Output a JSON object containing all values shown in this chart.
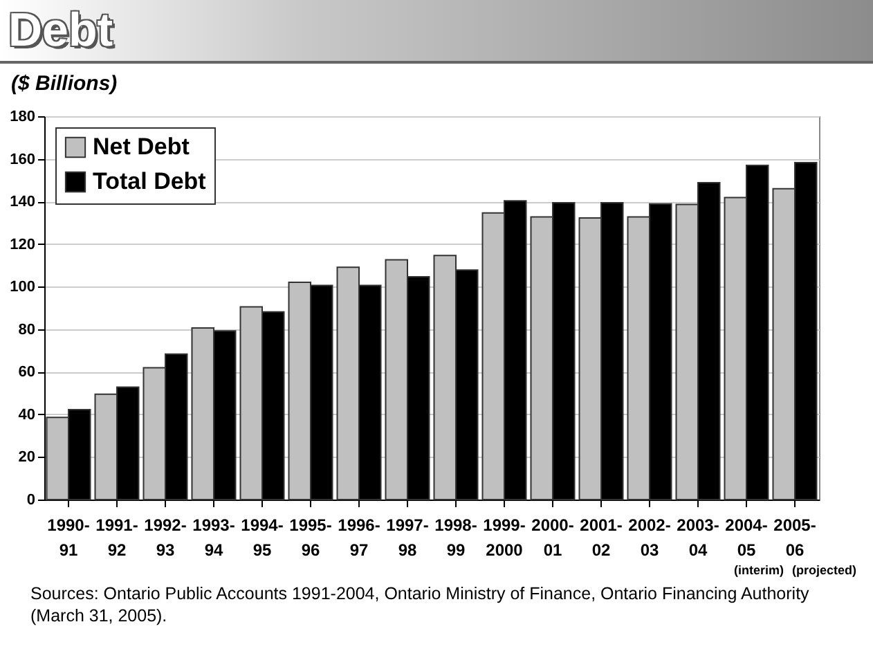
{
  "chart_data": {
    "type": "bar",
    "title": "Debt",
    "subtitle": "($ Billions)",
    "categories": [
      "1990-91",
      "1991-92",
      "1992-93",
      "1993-94",
      "1994-95",
      "1995-96",
      "1996-97",
      "1997-98",
      "1998-99",
      "1999-2000",
      "2000-01",
      "2001-02",
      "2002-03",
      "2003-04",
      "2004-05",
      "2005-06"
    ],
    "series": [
      {
        "name": "Net Debt",
        "color": "#c0c0c0",
        "values": [
          38.6,
          49.5,
          61.9,
          80.6,
          90.5,
          102.0,
          109.1,
          112.6,
          114.6,
          134.6,
          132.7,
          132.2,
          132.7,
          138.6,
          141.8,
          146.0
        ]
      },
      {
        "name": "Total Debt",
        "color": "#000000",
        "values": [
          42.2,
          52.8,
          68.3,
          79.2,
          88.1,
          100.6,
          100.6,
          104.6,
          107.8,
          140.3,
          139.4,
          139.4,
          138.8,
          148.8,
          156.9,
          158.2
        ]
      }
    ],
    "ylim": [
      0,
      180
    ],
    "yticks": [
      0,
      20,
      40,
      60,
      80,
      100,
      120,
      140,
      160,
      180
    ],
    "grid": "y",
    "legend": "top left",
    "annotations": [
      "(interim)",
      "(projected)",
      "Sources: Ontario Public Accounts 1991-2004, Ontario Ministry of Finance, Ontario Financing Authority (March 31, 2005)."
    ]
  }
}
